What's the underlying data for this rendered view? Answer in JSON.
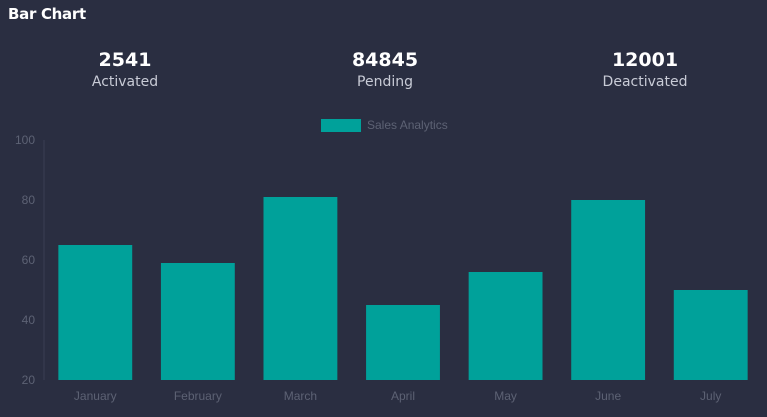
{
  "card": {
    "title": "Bar Chart"
  },
  "stats": [
    {
      "value": "2541",
      "label": "Activated"
    },
    {
      "value": "84845",
      "label": "Pending"
    },
    {
      "value": "12001",
      "label": "Deactivated"
    }
  ],
  "colors": {
    "background": "#2a2e41",
    "bar": "#00a19a",
    "muted_text": "#5d6274"
  },
  "chart_data": {
    "type": "bar",
    "title": "",
    "xlabel": "",
    "ylabel": "",
    "categories": [
      "January",
      "February",
      "March",
      "April",
      "May",
      "June",
      "July"
    ],
    "series": [
      {
        "name": "Sales Analytics",
        "values": [
          65,
          59,
          81,
          45,
          56,
          80,
          50
        ]
      }
    ],
    "ylim": [
      20,
      100
    ],
    "yticks": [
      20,
      40,
      60,
      80,
      100
    ],
    "grid": false,
    "legend": "top-center"
  }
}
